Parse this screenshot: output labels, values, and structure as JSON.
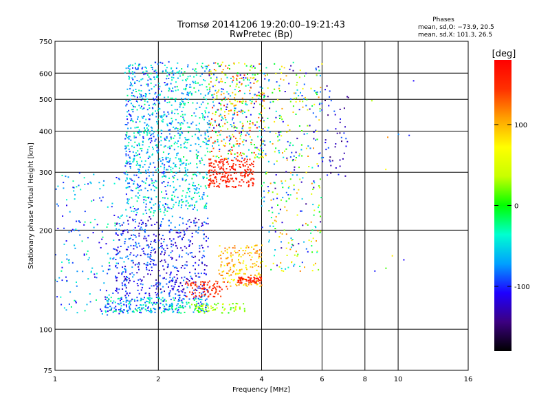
{
  "chart_data": {
    "type": "scatter",
    "title": "Tromsø 20141206 19:20:00–19:21:43",
    "subtitle": "RwPretec (Bp)",
    "xlabel": "Frequency [MHz]",
    "ylabel": "Stationary phase Virtual Height [km]",
    "x_scale": "log",
    "y_scale": "log",
    "xlim": [
      1,
      16
    ],
    "ylim": [
      75,
      750
    ],
    "x_ticks": [
      1,
      2,
      4,
      6,
      8,
      10,
      16
    ],
    "y_ticks": [
      75,
      100,
      200,
      300,
      400,
      500,
      600,
      750
    ],
    "grid": true,
    "stats": {
      "heading": "Phases",
      "line_o": "mean, sd,O: −73.9, 20.5",
      "line_x": "mean, sd,X: 101.3, 26.5"
    },
    "colorbar": {
      "label": "[deg]",
      "range": [
        -180,
        180
      ],
      "ticks": [
        100,
        0,
        -100
      ],
      "colors": [
        "#000000",
        "#3c0080",
        "#1e00ff",
        "#00a0ff",
        "#00ffd0",
        "#00ff00",
        "#c8ff00",
        "#ffff00",
        "#ffa000",
        "#ff3000",
        "#ff0000"
      ]
    },
    "clusters": [
      {
        "f": [
          1.0,
          1.6
        ],
        "h": [
          110,
          300
        ],
        "phase": [
          -120,
          -20
        ],
        "n": 190
      },
      {
        "f": [
          1.4,
          2.8
        ],
        "h": [
          112,
          125
        ],
        "phase": [
          -110,
          -10
        ],
        "n": 280
      },
      {
        "f": [
          1.5,
          2.8
        ],
        "h": [
          125,
          220
        ],
        "phase": [
          -140,
          -70
        ],
        "n": 520
      },
      {
        "f": [
          1.6,
          2.2
        ],
        "h": [
          220,
          650
        ],
        "phase": [
          -110,
          -20
        ],
        "n": 650
      },
      {
        "f": [
          2.2,
          2.8
        ],
        "h": [
          230,
          650
        ],
        "phase": [
          -90,
          -10
        ],
        "n": 380
      },
      {
        "f": [
          2.5,
          3.6
        ],
        "h": [
          112,
          120
        ],
        "phase": [
          0,
          60
        ],
        "n": 70
      },
      {
        "f": [
          2.4,
          3.2
        ],
        "h": [
          125,
          140
        ],
        "phase": [
          130,
          170
        ],
        "n": 90
      },
      {
        "f": [
          3.0,
          4.0
        ],
        "h": [
          135,
          180
        ],
        "phase": [
          60,
          130
        ],
        "n": 170
      },
      {
        "f": [
          3.4,
          4.0
        ],
        "h": [
          138,
          144
        ],
        "phase": [
          150,
          170
        ],
        "n": 60
      },
      {
        "f": [
          2.8,
          3.8
        ],
        "h": [
          270,
          330
        ],
        "phase": [
          140,
          175
        ],
        "n": 230
      },
      {
        "f": [
          2.8,
          4.1
        ],
        "h": [
          330,
          650
        ],
        "phase": [
          -130,
          170
        ],
        "n": 420
      },
      {
        "f": [
          4.0,
          6.0
        ],
        "h": [
          150,
          650
        ],
        "phase": [
          -140,
          120
        ],
        "n": 360
      },
      {
        "f": [
          5.8,
          7.2
        ],
        "h": [
          290,
          550
        ],
        "phase": [
          -150,
          -80
        ],
        "n": 55
      },
      {
        "f": [
          7.5,
          11.5
        ],
        "h": [
          150,
          600
        ],
        "phase": [
          -120,
          120
        ],
        "n": 10
      }
    ]
  }
}
